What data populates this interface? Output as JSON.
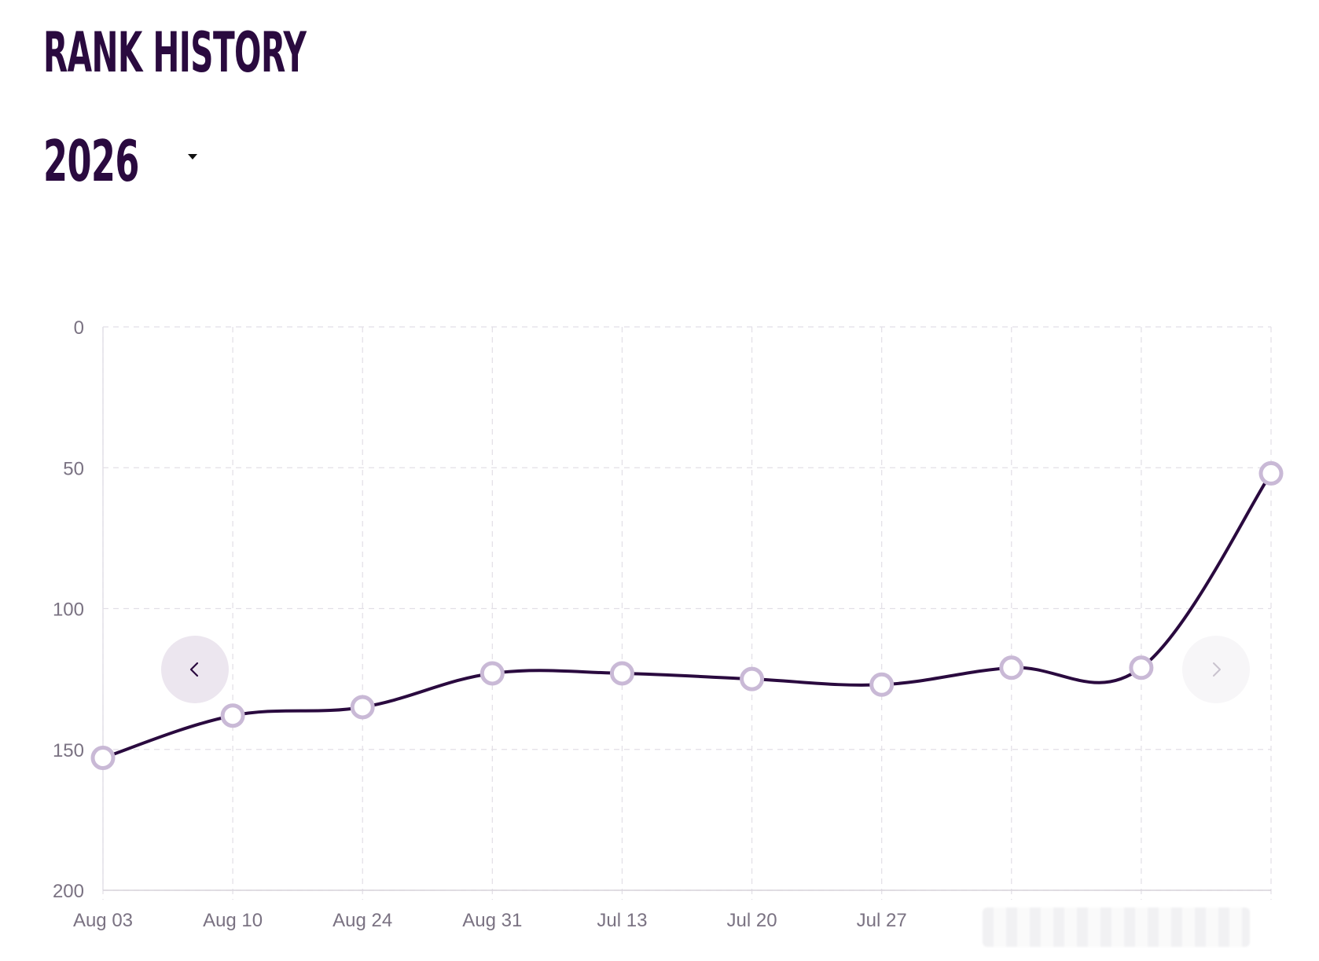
{
  "header": {
    "title": "RANK HISTORY"
  },
  "year_selector": {
    "selected": "2026"
  },
  "navigation": {
    "prev_icon": "chevron-left-icon",
    "next_icon": "chevron-right-icon"
  },
  "colors": {
    "title": "#2a0a3f",
    "line": "#2a0a3f",
    "marker_stroke": "#c9b9d6",
    "marker_fill": "#ffffff",
    "grid": "#e2dfe6",
    "tick_label": "#7a7282",
    "nav_prev_bg": "#ece6ef",
    "nav_next_bg": "#f7f6f8"
  },
  "chart_data": {
    "type": "line",
    "title": "",
    "xlabel": "",
    "ylabel": "",
    "y_reversed": true,
    "ylim": [
      0,
      200
    ],
    "y_ticks": [
      0,
      50,
      100,
      150,
      200
    ],
    "grid": true,
    "grid_style": "dashed",
    "x": [
      "Aug 03",
      "Aug 10",
      "Aug 24",
      "Aug 31",
      "Jul 13",
      "Jul 20",
      "Jul 27",
      "",
      "",
      ""
    ],
    "values": [
      153,
      138,
      135,
      123,
      123,
      125,
      127,
      121,
      121,
      52
    ]
  }
}
